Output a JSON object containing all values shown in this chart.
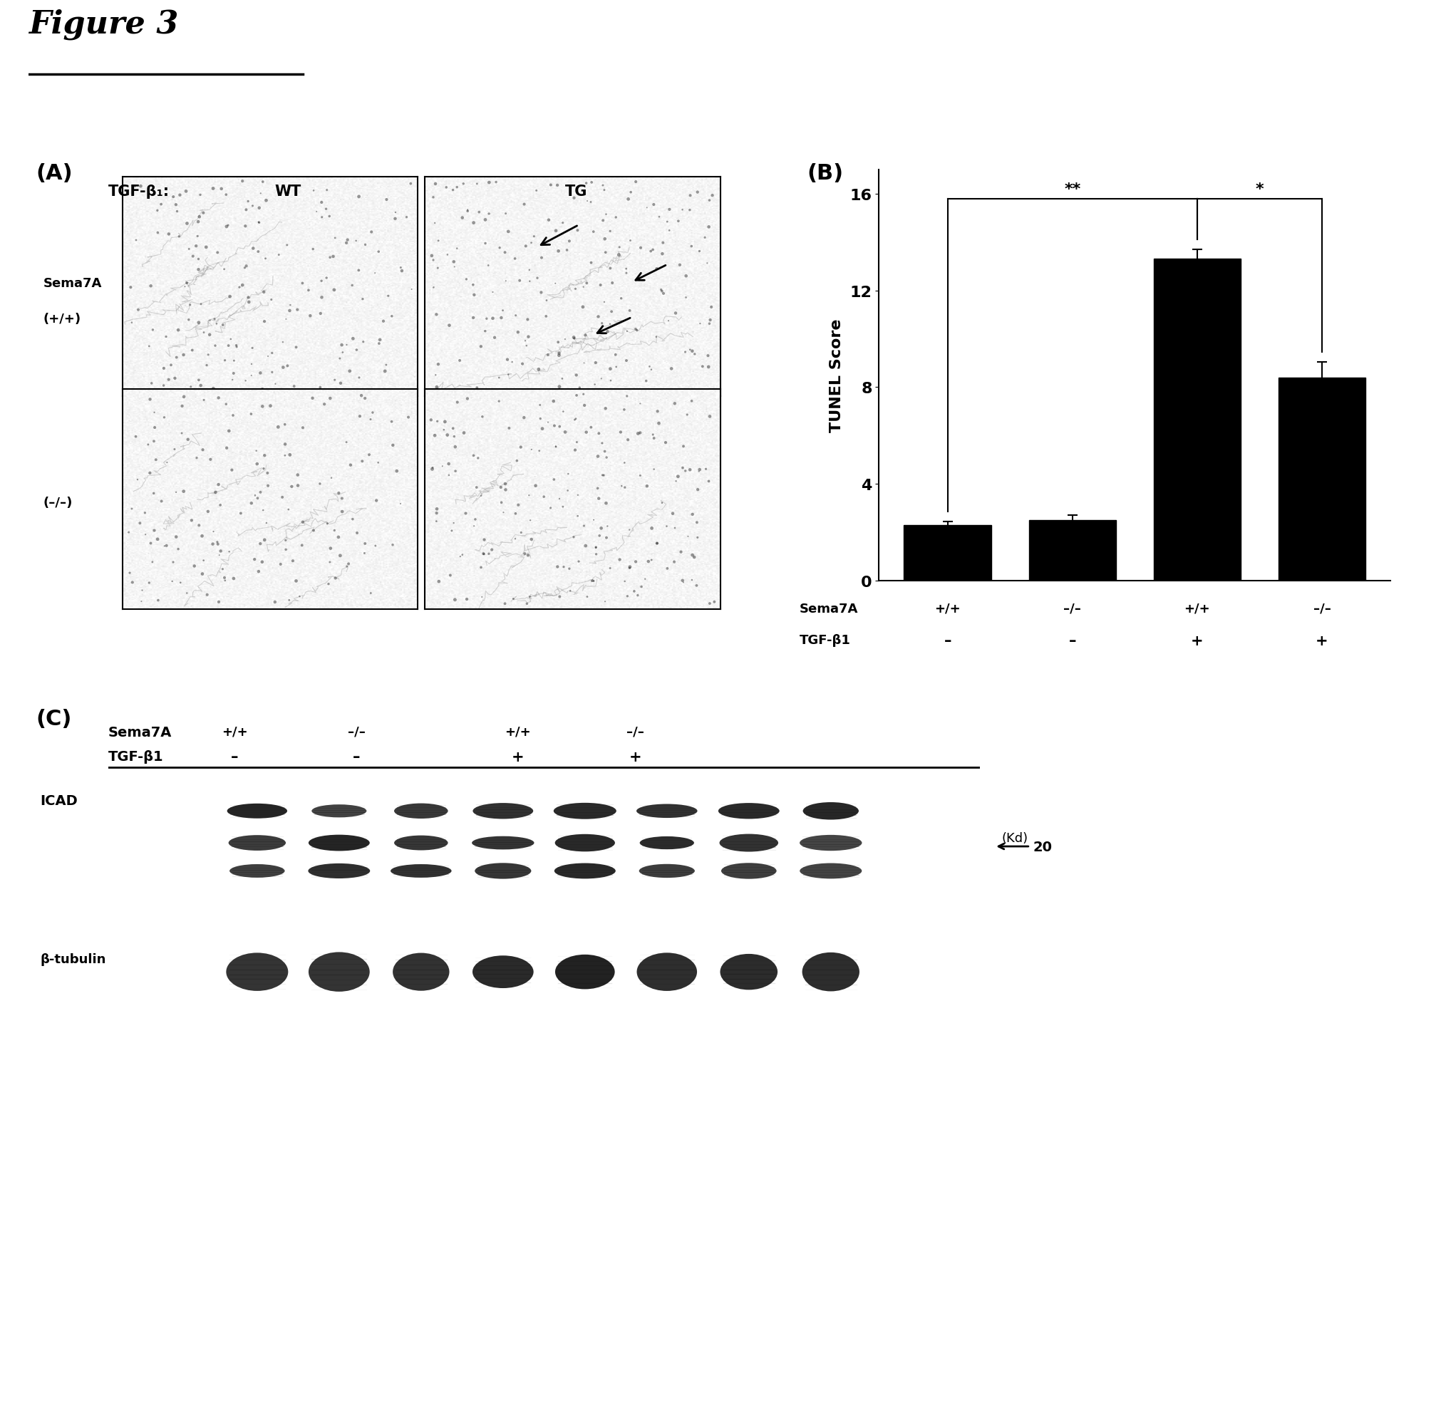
{
  "figure_title": "Figure 3",
  "panel_A_label": "(A)",
  "panel_B_label": "(B)",
  "panel_C_label": "(C)",
  "bar_values": [
    2.3,
    2.5,
    13.3,
    8.4
  ],
  "bar_errors": [
    0.15,
    0.2,
    0.4,
    0.65
  ],
  "bar_color": "#000000",
  "bar_categories": [
    "+/+",
    "–/–",
    "+/+",
    "–/–"
  ],
  "tgf_labels": [
    "–",
    "–",
    "+",
    "+"
  ],
  "ylabel": "TUNEL Score",
  "yticks": [
    0,
    4,
    8,
    12,
    16
  ],
  "ylim": [
    0,
    17
  ],
  "col_header_tgf": "TGF-β₁:",
  "col_header_wt": "WT",
  "col_header_tg": "TG",
  "background_color": "#ffffff",
  "icad_label": "ICAD",
  "beta_tub_label": "β-tubulin",
  "kd_label": "(Kd)",
  "c_sema7a_vals": [
    "+/+",
    "–/–",
    "+/+",
    "–/–"
  ],
  "c_tgf_vals": [
    "–",
    "–",
    "+",
    "+"
  ]
}
